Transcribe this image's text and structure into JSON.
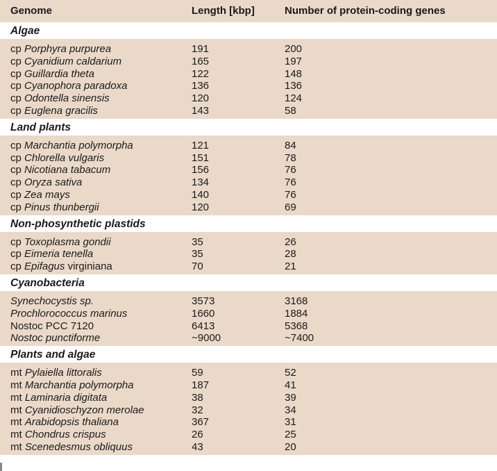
{
  "header": {
    "genome": "Genome",
    "length": "Length [kbp]",
    "genes": "Number of protein-coding genes"
  },
  "sections": [
    {
      "title": "Algae",
      "rows": [
        {
          "prefix": "cp",
          "name": "Porphyra purpurea",
          "length": "191",
          "genes": "200"
        },
        {
          "prefix": "cp",
          "name": "Cyanidium caldarium",
          "length": "165",
          "genes": "197"
        },
        {
          "prefix": "cp",
          "name": "Guillardia theta",
          "length": "122",
          "genes": "148"
        },
        {
          "prefix": "cp",
          "name": "Cyanophora paradoxa",
          "length": "136",
          "genes": "136"
        },
        {
          "prefix": "cp",
          "name": "Odontella sinensis",
          "length": "120",
          "genes": "124"
        },
        {
          "prefix": "cp",
          "name": "Euglena gracilis",
          "length": "143",
          "genes": "58"
        }
      ]
    },
    {
      "title": "Land plants",
      "rows": [
        {
          "prefix": "cp",
          "name": "Marchantia polymorpha",
          "length": "121",
          "genes": "84"
        },
        {
          "prefix": "cp",
          "name": "Chlorella vulgaris",
          "length": "151",
          "genes": "78"
        },
        {
          "prefix": "cp",
          "name": "Nicotiana tabacum",
          "length": "156",
          "genes": "76"
        },
        {
          "prefix": "cp",
          "name": "Oryza sativa",
          "length": "134",
          "genes": "76"
        },
        {
          "prefix": "cp",
          "name": "Zea mays",
          "length": "140",
          "genes": "76"
        },
        {
          "prefix": "cp",
          "name": "Pinus thunbergii",
          "length": "120",
          "genes": "69"
        }
      ]
    },
    {
      "title": "Non-phosynthetic plastids",
      "rows": [
        {
          "prefix": "cp",
          "name": "Toxoplasma gondii",
          "length": "35",
          "genes": "26"
        },
        {
          "prefix": "cp",
          "name": "Eimeria tenella",
          "length": "35",
          "genes": "28"
        },
        {
          "prefix": "cp",
          "name": "Epifagus",
          "suffix": "virginiana",
          "length": "70",
          "genes": "21"
        }
      ]
    },
    {
      "title": "Cyanobacteria",
      "rows": [
        {
          "prefix": "",
          "name": "Synechocystis sp.",
          "length": "3573",
          "genes": "3168"
        },
        {
          "prefix": "",
          "name": "Prochlorococcus marinus",
          "length": "1660",
          "genes": "1884"
        },
        {
          "prefix": "",
          "name": "",
          "suffix": "Nostoc PCC 7120",
          "length": "6413",
          "genes": "5368"
        },
        {
          "prefix": "",
          "name": "Nostoc punctiforme",
          "length": "~9000",
          "genes": "~7400"
        }
      ]
    },
    {
      "title": "Plants and algae",
      "rows": [
        {
          "prefix": "mt",
          "name": "Pylaiella littoralis",
          "length": "59",
          "genes": "52"
        },
        {
          "prefix": "mt",
          "name": "Marchantia polymorpha",
          "length": "187",
          "genes": "41"
        },
        {
          "prefix": "mt",
          "name": "Laminaria digitata",
          "length": "38",
          "genes": "39"
        },
        {
          "prefix": "mt",
          "name": "Cyanidioschyzon merolae",
          "length": "32",
          "genes": "34"
        },
        {
          "prefix": "mt",
          "name": "Arabidopsis thaliana",
          "length": "367",
          "genes": "31"
        },
        {
          "prefix": "mt",
          "name": "Chondrus crispus",
          "length": "26",
          "genes": "25"
        },
        {
          "prefix": "mt",
          "name": "Scenedesmus obliquus",
          "length": "43",
          "genes": "20"
        }
      ]
    }
  ]
}
